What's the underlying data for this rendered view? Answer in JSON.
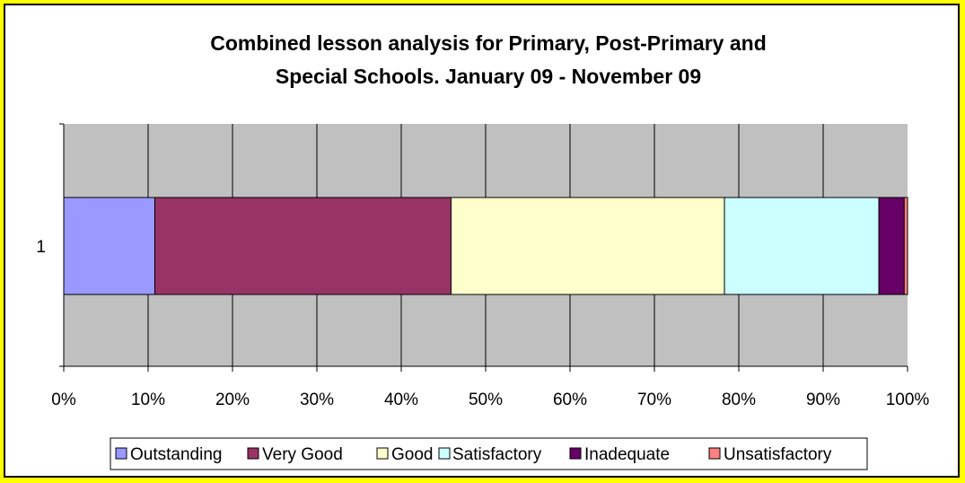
{
  "chart_data": {
    "type": "bar",
    "orientation": "horizontal",
    "stacking": "percent",
    "title_lines": [
      "Combined lesson analysis for Primary, Post-Primary and",
      "Special Schools. January 09 - November 09"
    ],
    "categories": [
      "1"
    ],
    "x_tick_labels": [
      "0%",
      "10%",
      "20%",
      "30%",
      "40%",
      "50%",
      "60%",
      "70%",
      "80%",
      "90%",
      "100%"
    ],
    "xlim": [
      0,
      100
    ],
    "grid": true,
    "legend_position": "bottom",
    "series": [
      {
        "name": "Outstanding",
        "values": [
          10.8
        ],
        "color": "#9999ff"
      },
      {
        "name": "Very Good",
        "values": [
          35.1
        ],
        "color": "#993366"
      },
      {
        "name": "Good",
        "values": [
          32.4
        ],
        "color": "#ffffcc"
      },
      {
        "name": "Satisfactory",
        "values": [
          18.3
        ],
        "color": "#ccffff"
      },
      {
        "name": "Inadequate",
        "values": [
          3.0
        ],
        "color": "#660066"
      },
      {
        "name": "Unsatisfactory",
        "values": [
          0.4
        ],
        "color": "#ff8080"
      }
    ],
    "colors": {
      "page_background": "#ffff00",
      "plot_background": "#c0c0c0",
      "gridline": "#000000"
    }
  }
}
